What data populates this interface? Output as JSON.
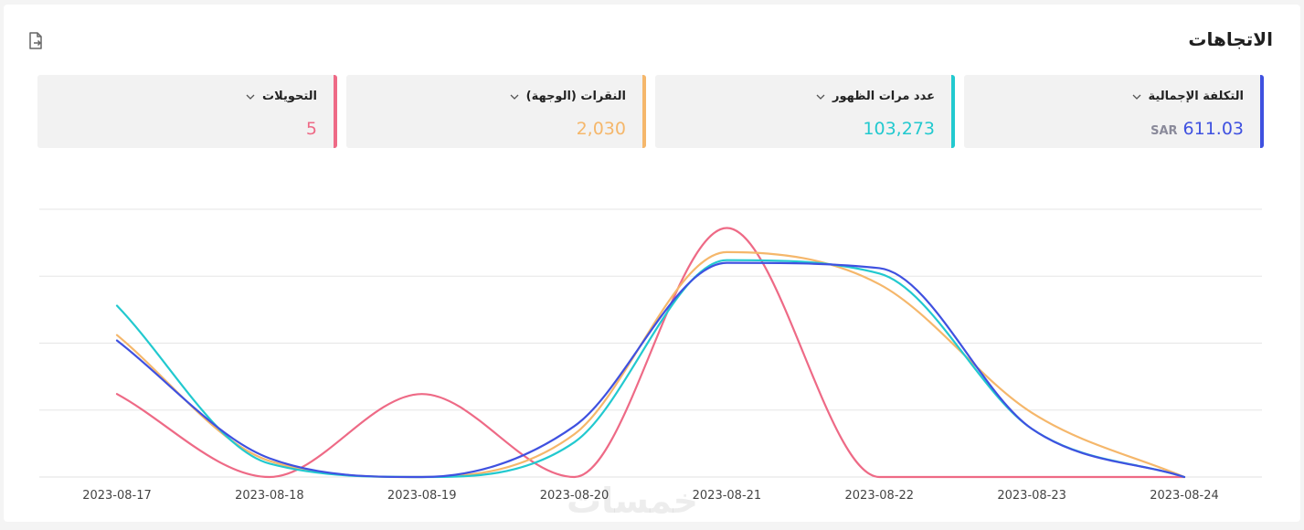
{
  "header": {
    "title": "الاتجاهات"
  },
  "metrics": [
    {
      "label": "التكلفة الإجمالية",
      "value": "611.03",
      "unit": "SAR",
      "color": "#3f51e0"
    },
    {
      "label": "عدد مرات الظهور",
      "value": "103,273",
      "color": "#22c9cf"
    },
    {
      "label": "النقرات (الوجهة)",
      "value": "2,030",
      "color": "#f5b76b"
    },
    {
      "label": "التحويلات",
      "value": "5",
      "color": "#ee6a86"
    }
  ],
  "watermark": "خمسات",
  "chart_data": {
    "type": "line",
    "x": [
      "2023-08-17",
      "2023-08-18",
      "2023-08-19",
      "2023-08-20",
      "2023-08-21",
      "2023-08-22",
      "2023-08-23",
      "2023-08-24"
    ],
    "ylim": [
      0,
      1
    ],
    "grid": true,
    "series": [
      {
        "name": "التكلفة الإجمالية",
        "color": "#3f51e0",
        "values": [
          0.51,
          0.07,
          0.0,
          0.19,
          0.8,
          0.78,
          0.18,
          0.0
        ]
      },
      {
        "name": "عدد مرات الظهور",
        "color": "#22c9cf",
        "values": [
          0.64,
          0.05,
          0.0,
          0.13,
          0.81,
          0.76,
          0.18,
          0.0
        ]
      },
      {
        "name": "النقرات (الوجهة)",
        "color": "#f5b76b",
        "values": [
          0.53,
          0.06,
          0.0,
          0.16,
          0.84,
          0.72,
          0.24,
          0.0
        ]
      },
      {
        "name": "التحويلات",
        "color": "#ee6a86",
        "values": [
          0.31,
          0.0,
          0.31,
          0.0,
          0.93,
          0.0,
          0.0,
          0.0
        ]
      }
    ]
  }
}
